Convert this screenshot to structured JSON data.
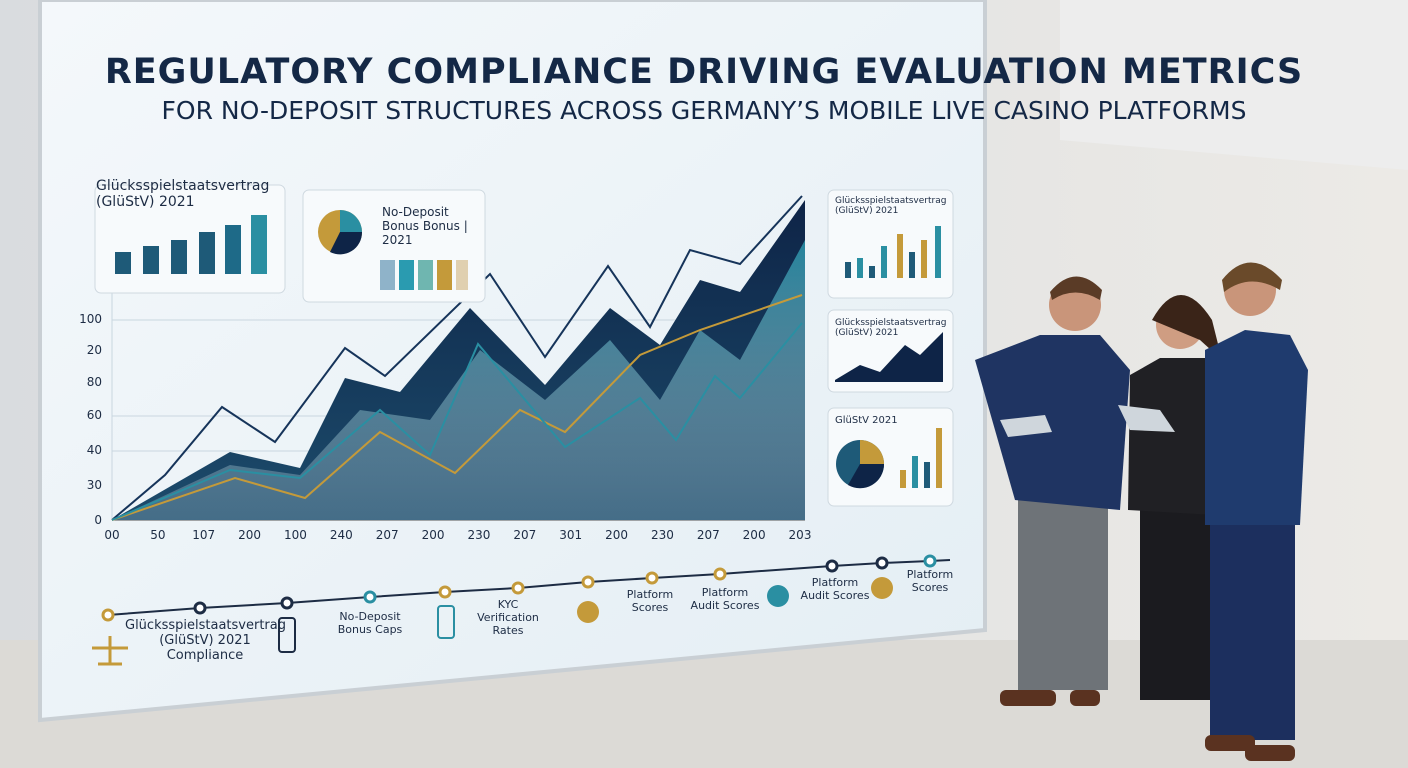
{
  "header": {
    "title": "REGULATORY COMPLIANCE DRIVING EVALUATION METRICS",
    "subtitle": "FOR NO-DEPOSIT STRUCTURES ACROSS GERMANY’S MOBILE LIVE CASINO PLATFORMS"
  },
  "main_chart": {
    "y_labels": [
      "100",
      "20",
      "80",
      "60",
      "40",
      "30",
      "0"
    ],
    "x_labels": [
      "00",
      "50",
      "107",
      "200",
      "100",
      "240",
      "207",
      "200",
      "230",
      "207",
      "301",
      "200",
      "230",
      "207",
      "200",
      "203"
    ]
  },
  "panels": [
    {
      "title": "Glücksspielstaatsvertrag (GlüStV) 2021"
    },
    {
      "title": "No-Deposit Bonus Bonus | 2021"
    },
    {
      "title": "Glücksspielstaatsvertrag (GlüStV) 2021"
    },
    {
      "title": "Glücksspielstaatsvertrag (GlüStV) 2021"
    },
    {
      "title": "GlüStV 2021"
    }
  ],
  "timeline": [
    "Glücksspielstaatsvertrag (GlüStV) 2021 Compliance",
    "No-Deposit Bonus Caps",
    "KYC Verification Rates",
    "Platform Scores",
    "Platform Audit Scores",
    "Platform Audit Scores",
    "Platform Scores"
  ]
}
